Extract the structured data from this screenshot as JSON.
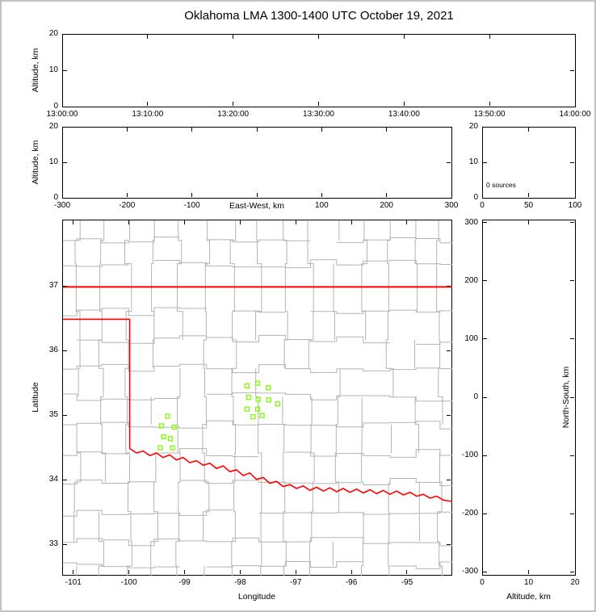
{
  "title": "Oklahoma LMA 1300-1400 UTC October 19, 2021",
  "colors": {
    "frame": "#000000",
    "county_lines": "#b3b3b3",
    "state_border": "#ff0000",
    "stations": "#7cfc00",
    "background": "#ffffff",
    "window_border": "#c2c2c2"
  },
  "chart_data": [
    {
      "id": "time_altitude",
      "type": "scatter",
      "ylabel": "Altitude, km",
      "ylim": [
        0,
        20
      ],
      "yticks": [
        {
          "v": 0,
          "t": "0"
        },
        {
          "v": 10,
          "t": "10"
        },
        {
          "v": 20,
          "t": "20"
        }
      ],
      "xticks_time": [
        "13:00:00",
        "13:10:00",
        "13:20:00",
        "13:30:00",
        "13:40:00",
        "13:50:00",
        "14:00:00"
      ],
      "points": []
    },
    {
      "id": "eastwest_altitude",
      "type": "scatter",
      "ylabel": "Altitude, km",
      "xlabel": "East-West, km",
      "xlim": [
        -300,
        300
      ],
      "xticks": [
        {
          "v": -300,
          "t": "-300"
        },
        {
          "v": -200,
          "t": "-200"
        },
        {
          "v": -100,
          "t": "-100"
        },
        {
          "v": 0,
          "t": ""
        },
        {
          "v": 100,
          "t": "100"
        },
        {
          "v": 200,
          "t": "200"
        },
        {
          "v": 300,
          "t": "300"
        }
      ],
      "ylim": [
        0,
        20
      ],
      "yticks": [
        {
          "v": 0,
          "t": "0"
        },
        {
          "v": 10,
          "t": "10"
        },
        {
          "v": 20,
          "t": "20"
        }
      ],
      "points": []
    },
    {
      "id": "altitude_source_histogram",
      "type": "line",
      "annotation": "0 sources",
      "xlim": [
        0,
        100
      ],
      "xticks": [
        {
          "v": 0,
          "t": "0"
        },
        {
          "v": 50,
          "t": "50"
        },
        {
          "v": 100,
          "t": "100"
        }
      ],
      "ylim": [
        0,
        20
      ],
      "yticks": [
        {
          "v": 0,
          "t": "0"
        },
        {
          "v": 10,
          "t": "10"
        },
        {
          "v": 20,
          "t": "20"
        }
      ],
      "points": []
    },
    {
      "id": "plan_view_map",
      "type": "scatter",
      "xlabel": "Longitude",
      "ylabel": "Latitude",
      "xlim": [
        -101.2,
        -94.2
      ],
      "ylim": [
        32.53,
        38.03
      ],
      "xticks": [
        {
          "v": -101,
          "t": "-101"
        },
        {
          "v": -100,
          "t": "-100"
        },
        {
          "v": -99,
          "t": "-99"
        },
        {
          "v": -98,
          "t": "-98"
        },
        {
          "v": -97,
          "t": "-97"
        },
        {
          "v": -96,
          "t": "-96"
        },
        {
          "v": -95,
          "t": "-95"
        }
      ],
      "yticks": [
        {
          "v": 33,
          "t": "33"
        },
        {
          "v": 34,
          "t": "34"
        },
        {
          "v": 35,
          "t": "35"
        },
        {
          "v": 36,
          "t": "36"
        },
        {
          "v": 37,
          "t": "37"
        }
      ],
      "state_border": {
        "kansas_border_lat": 37.0,
        "west_border": [
          [
            -101.2,
            36.5
          ],
          [
            -100.0,
            36.5
          ]
        ],
        "red_river": [
          [
            -100.0,
            34.5
          ],
          [
            -99.88,
            34.43
          ],
          [
            -99.76,
            34.46
          ],
          [
            -99.64,
            34.39
          ],
          [
            -99.52,
            34.43
          ],
          [
            -99.4,
            34.36
          ],
          [
            -99.28,
            34.4
          ],
          [
            -99.16,
            34.32
          ],
          [
            -99.04,
            34.36
          ],
          [
            -98.92,
            34.28
          ],
          [
            -98.8,
            34.31
          ],
          [
            -98.68,
            34.24
          ],
          [
            -98.56,
            34.27
          ],
          [
            -98.44,
            34.19
          ],
          [
            -98.32,
            34.23
          ],
          [
            -98.2,
            34.14
          ],
          [
            -98.08,
            34.17
          ],
          [
            -97.96,
            34.08
          ],
          [
            -97.84,
            34.12
          ],
          [
            -97.72,
            34.02
          ],
          [
            -97.6,
            34.05
          ],
          [
            -97.48,
            33.96
          ],
          [
            -97.36,
            33.99
          ],
          [
            -97.24,
            33.91
          ],
          [
            -97.12,
            33.94
          ],
          [
            -97.0,
            33.88
          ],
          [
            -96.88,
            33.92
          ],
          [
            -96.76,
            33.85
          ],
          [
            -96.64,
            33.9
          ],
          [
            -96.52,
            33.84
          ],
          [
            -96.4,
            33.89
          ],
          [
            -96.28,
            33.83
          ],
          [
            -96.16,
            33.88
          ],
          [
            -96.04,
            33.82
          ],
          [
            -95.92,
            33.87
          ],
          [
            -95.8,
            33.81
          ],
          [
            -95.68,
            33.86
          ],
          [
            -95.56,
            33.8
          ],
          [
            -95.44,
            33.85
          ],
          [
            -95.32,
            33.79
          ],
          [
            -95.2,
            33.84
          ],
          [
            -95.08,
            33.78
          ],
          [
            -94.96,
            33.82
          ],
          [
            -94.84,
            33.76
          ],
          [
            -94.72,
            33.79
          ],
          [
            -94.6,
            33.73
          ],
          [
            -94.48,
            33.76
          ],
          [
            -94.36,
            33.7
          ],
          [
            -94.2,
            33.68
          ]
        ]
      },
      "stations": [
        [
          -99.32,
          35.0
        ],
        [
          -99.43,
          34.85
        ],
        [
          -99.2,
          34.83
        ],
        [
          -99.39,
          34.68
        ],
        [
          -99.27,
          34.65
        ],
        [
          -99.45,
          34.51
        ],
        [
          -99.23,
          34.51
        ],
        [
          -97.89,
          35.47
        ],
        [
          -97.7,
          35.51
        ],
        [
          -97.51,
          35.44
        ],
        [
          -97.86,
          35.29
        ],
        [
          -97.69,
          35.26
        ],
        [
          -97.5,
          35.25
        ],
        [
          -97.34,
          35.19
        ],
        [
          -97.89,
          35.11
        ],
        [
          -97.7,
          35.11
        ],
        [
          -97.78,
          34.99
        ],
        [
          -97.62,
          35.01
        ]
      ],
      "county_grid": {
        "v_lons": [
          -100.95,
          -100.5,
          -100.02,
          -99.56,
          -99.1,
          -98.62,
          -98.15,
          -97.68,
          -97.2,
          -96.75,
          -96.28,
          -95.8,
          -95.32,
          -94.85,
          -94.42
        ],
        "h_lats": [
          37.72,
          37.36,
          36.62,
          36.18,
          35.74,
          35.3,
          34.87,
          34.43,
          33.98,
          33.52,
          33.06,
          32.68
        ],
        "jitter_deg": 0.07,
        "skip_prob": 0.12,
        "seed": 19102021
      }
    },
    {
      "id": "northsouth_altitude",
      "type": "scatter",
      "xlabel": "Altitude, km",
      "ylabel": "North-South, km",
      "xlim": [
        0,
        20
      ],
      "xticks": [
        {
          "v": 0,
          "t": "0"
        },
        {
          "v": 10,
          "t": "10"
        },
        {
          "v": 20,
          "t": "20"
        }
      ],
      "ylim": [
        -305,
        305
      ],
      "yticks": [
        {
          "v": 300,
          "t": "300"
        },
        {
          "v": 200,
          "t": "200"
        },
        {
          "v": 100,
          "t": "100"
        },
        {
          "v": 0,
          "t": "0"
        },
        {
          "v": -100,
          "t": "-100"
        },
        {
          "v": -200,
          "t": "-200"
        },
        {
          "v": -300,
          "t": "-300"
        }
      ],
      "points": []
    }
  ]
}
